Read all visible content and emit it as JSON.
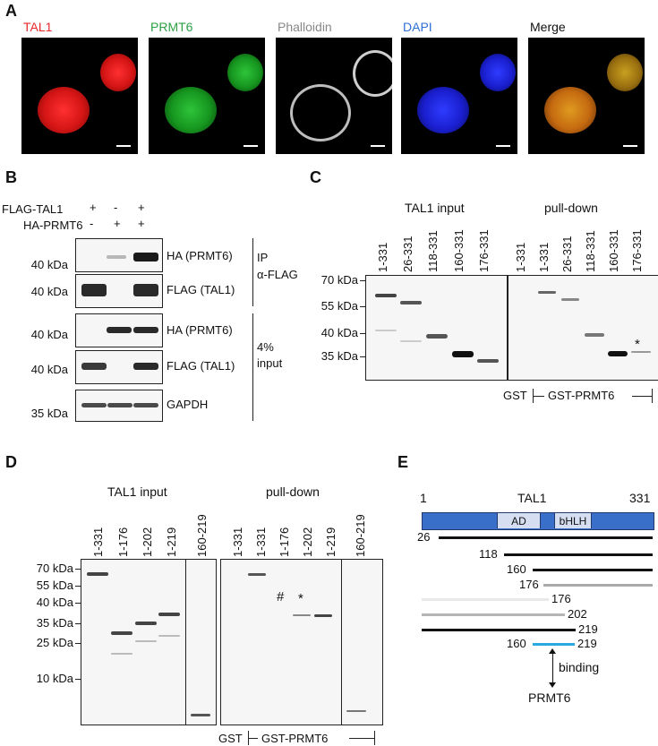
{
  "panel_a": {
    "letter": "A",
    "channels": [
      {
        "title": "TAL1",
        "color": "#e8282a"
      },
      {
        "title": "PRMT6",
        "color": "#2ea043"
      },
      {
        "title": "Phalloidin",
        "color": "#888888"
      },
      {
        "title": "DAPI",
        "color": "#2f6fd6"
      },
      {
        "title": "Merge",
        "color": "#111111"
      }
    ]
  },
  "panel_b": {
    "letter": "B",
    "conditions": [
      {
        "label": "FLAG-TAL1",
        "marks": [
          "+",
          "-",
          "+"
        ]
      },
      {
        "label": "HA-PRMT6",
        "marks": [
          "-",
          "+",
          "+"
        ]
      }
    ],
    "blots": [
      {
        "kda": "40 kDa",
        "label": "HA (PRMT6)"
      },
      {
        "kda": "40 kDa",
        "label": "FLAG (TAL1)"
      },
      {
        "kda": "40 kDa",
        "label": "HA (PRMT6)"
      },
      {
        "kda": "40 kDa",
        "label": "FLAG (TAL1)"
      },
      {
        "kda": "35 kDa",
        "label": "GAPDH"
      }
    ],
    "group_ip": [
      "IP",
      "α-FLAG"
    ],
    "group_input": [
      "4%",
      "input"
    ]
  },
  "panel_c": {
    "letter": "C",
    "input_title": "TAL1 input",
    "pulldown_title": "pull-down",
    "input_lanes": [
      "1-331",
      "26-331",
      "118-331",
      "160-331",
      "176-331"
    ],
    "pulldown_lanes": [
      "1-331",
      "1-331",
      "26-331",
      "118-331",
      "160-331",
      "176-331"
    ],
    "markers": [
      "70 kDa",
      "55 kDa",
      "40 kDa",
      "35 kDa"
    ],
    "asterisk": "*",
    "gst": "GST",
    "gst_prmt6": "GST-PRMT6"
  },
  "panel_d": {
    "letter": "D",
    "input_title": "TAL1 input",
    "pulldown_title": "pull-down",
    "input_lanes": [
      "1-331",
      "1-176",
      "1-202",
      "1-219",
      "160-219"
    ],
    "pulldown_lanes": [
      "1-331",
      "1-331",
      "1-176",
      "1-202",
      "1-219",
      "160-219"
    ],
    "markers": [
      "70 kDa",
      "55 kDa",
      "40 kDa",
      "35 kDa",
      "25 kDa",
      "10 kDa"
    ],
    "hash": "#",
    "asterisk": "*",
    "gst": "GST",
    "gst_prmt6": "GST-PRMT6"
  },
  "panel_e": {
    "letter": "E",
    "start": "1",
    "protein": "TAL1",
    "end": "331",
    "domains": [
      "AD",
      "bHLH"
    ],
    "fragments": [
      "26",
      "118",
      "160",
      "176",
      "176",
      "202",
      "219",
      "160",
      "219"
    ],
    "binding": "binding",
    "partner": "PRMT6",
    "colors": {
      "protein": "#3a6fc9",
      "domain": "#d6dff2",
      "binding": "#29a9e0",
      "weak": "#b5b5b5"
    }
  }
}
